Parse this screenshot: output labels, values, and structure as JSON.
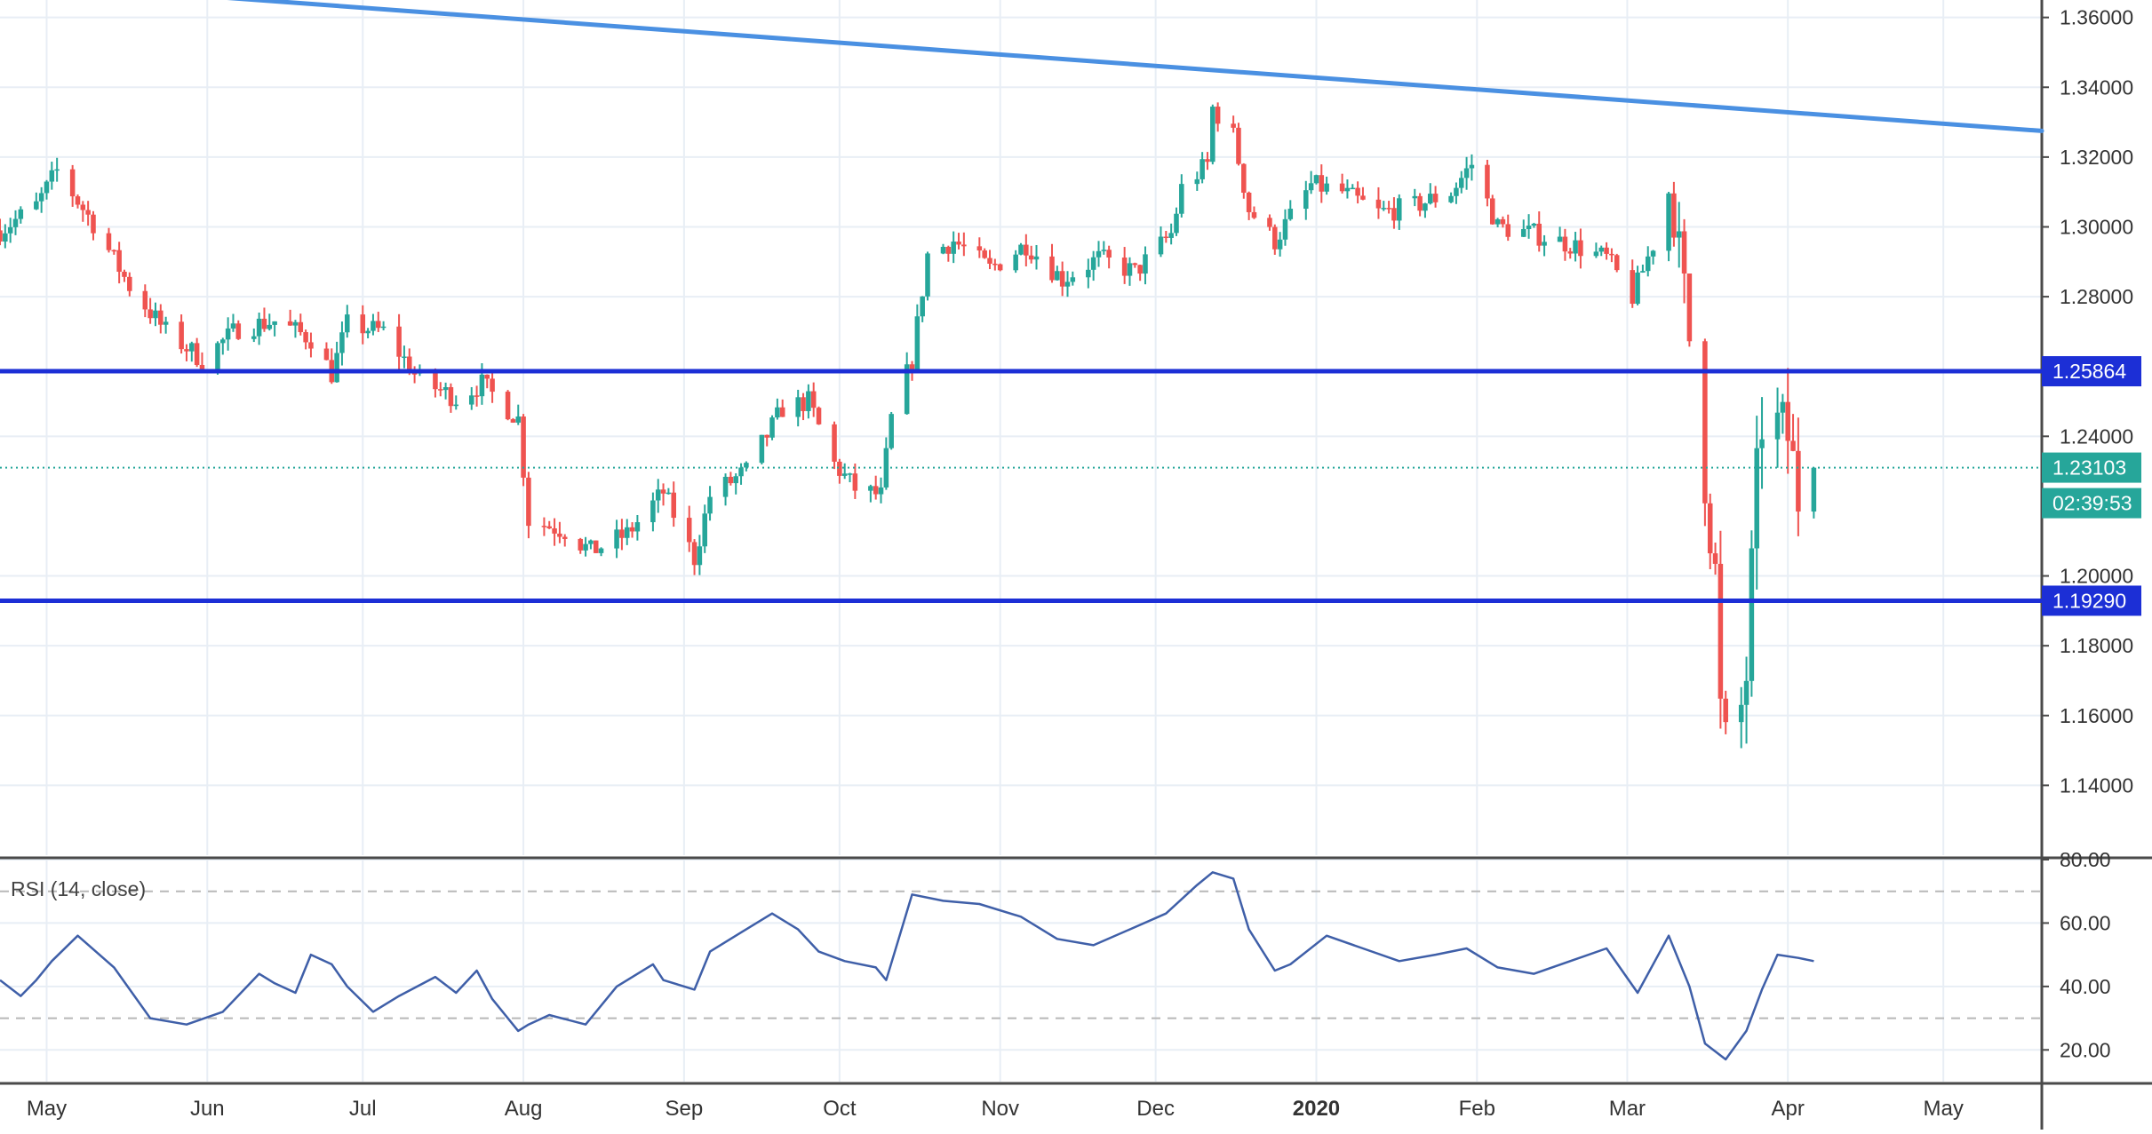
{
  "rsi_label": "RSI (14, close)",
  "colors": {
    "up": "#26a69a",
    "down": "#ef5350",
    "trendline": "#4a90e2",
    "level_line": "#1c2fd6",
    "rsi_line": "#3f5fa8",
    "grid": "#e8eef5",
    "price_label_bg": "#26a69a",
    "level_label_bg": "#1c2fd6"
  },
  "chart_data": [
    {
      "type": "candlestick",
      "x_axis_months": [
        "May",
        "Jun",
        "Jul",
        "Aug",
        "Sep",
        "Oct",
        "Nov",
        "Dec",
        "2020",
        "Feb",
        "Mar",
        "Apr",
        "May"
      ],
      "date_range": [
        "2019-04-22",
        "2020-05-20"
      ],
      "ylim": [
        1.12,
        1.365
      ],
      "y_ticks": [
        "1.36000",
        "1.34000",
        "1.32000",
        "1.30000",
        "1.28000",
        "1.24000",
        "1.20000",
        "1.18000",
        "1.16000",
        "1.14000"
      ],
      "grid": true,
      "current_price": "1.23103",
      "countdown": "02:39:53",
      "horizontal_levels": [
        {
          "value": 1.25864,
          "label": "1.25864"
        },
        {
          "value": 1.1929,
          "label": "1.19290"
        }
      ],
      "trendline": {
        "from": [
          "2019-03-20",
          1.374
        ],
        "to": [
          "2020-05-20",
          1.3275
        ]
      },
      "keypoints": [
        [
          "2019-04-22",
          1.299
        ],
        [
          "2019-04-29",
          1.306
        ],
        [
          "2019-05-03",
          1.316
        ],
        [
          "2019-05-10",
          1.301
        ],
        [
          "2019-05-17",
          1.283
        ],
        [
          "2019-05-24",
          1.27
        ],
        [
          "2019-05-31",
          1.262
        ],
        [
          "2019-06-07",
          1.271
        ],
        [
          "2019-06-14",
          1.273
        ],
        [
          "2019-06-21",
          1.268
        ],
        [
          "2019-06-25",
          1.258
        ],
        [
          "2019-06-28",
          1.272
        ],
        [
          "2019-07-05",
          1.27
        ],
        [
          "2019-07-12",
          1.256
        ],
        [
          "2019-07-19",
          1.251
        ],
        [
          "2019-07-24",
          1.255
        ],
        [
          "2019-07-31",
          1.245
        ],
        [
          "2019-08-02",
          1.216
        ],
        [
          "2019-08-09",
          1.213
        ],
        [
          "2019-08-14",
          1.207
        ],
        [
          "2019-08-21",
          1.212
        ],
        [
          "2019-08-28",
          1.224
        ],
        [
          "2019-09-03",
          1.205
        ],
        [
          "2019-09-06",
          1.223
        ],
        [
          "2019-09-13",
          1.23
        ],
        [
          "2019-09-20",
          1.248
        ],
        [
          "2019-09-25",
          1.25
        ],
        [
          "2019-09-30",
          1.232
        ],
        [
          "2019-10-04",
          1.225
        ],
        [
          "2019-10-09",
          1.223
        ],
        [
          "2019-10-11",
          1.245
        ],
        [
          "2019-10-15",
          1.262
        ],
        [
          "2019-10-18",
          1.292
        ],
        [
          "2019-10-23",
          1.296
        ],
        [
          "2019-10-30",
          1.288
        ],
        [
          "2019-11-06",
          1.295
        ],
        [
          "2019-11-13",
          1.285
        ],
        [
          "2019-11-20",
          1.291
        ],
        [
          "2019-11-27",
          1.287
        ],
        [
          "2019-12-04",
          1.298
        ],
        [
          "2019-12-06",
          1.311
        ],
        [
          "2019-12-11",
          1.318
        ],
        [
          "2019-12-12",
          1.334
        ],
        [
          "2019-12-16",
          1.326
        ],
        [
          "2019-12-19",
          1.305
        ],
        [
          "2019-12-24",
          1.296
        ],
        [
          "2019-12-31",
          1.312
        ],
        [
          "2020-01-06",
          1.31
        ],
        [
          "2020-01-13",
          1.304
        ],
        [
          "2020-01-20",
          1.306
        ],
        [
          "2020-01-27",
          1.31
        ],
        [
          "2020-01-31",
          1.318
        ],
        [
          "2020-02-05",
          1.3
        ],
        [
          "2020-02-12",
          1.298
        ],
        [
          "2020-02-19",
          1.295
        ],
        [
          "2020-02-26",
          1.291
        ],
        [
          "2020-03-02",
          1.28
        ],
        [
          "2020-03-06",
          1.295
        ],
        [
          "2020-03-09",
          1.31
        ],
        [
          "2020-03-11",
          1.29
        ],
        [
          "2020-03-13",
          1.268
        ],
        [
          "2020-03-16",
          1.23
        ],
        [
          "2020-03-18",
          1.2
        ],
        [
          "2020-03-19",
          1.16
        ],
        [
          "2020-03-20",
          1.15
        ],
        [
          "2020-03-23",
          1.162
        ],
        [
          "2020-03-24",
          1.172
        ],
        [
          "2020-03-25",
          1.2
        ],
        [
          "2020-03-26",
          1.226
        ],
        [
          "2020-03-27",
          1.245
        ],
        [
          "2020-03-30",
          1.242
        ],
        [
          "2020-04-01",
          1.24
        ],
        [
          "2020-04-03",
          1.223
        ],
        [
          "2020-04-06",
          1.231
        ]
      ]
    },
    {
      "type": "line",
      "title": "RSI (14, close)",
      "ylim": [
        10,
        80
      ],
      "y_ticks": [
        "80.00",
        "60.00",
        "40.00",
        "20.00"
      ],
      "reference_levels": [
        70,
        30
      ],
      "x": [
        "2019-04-22",
        "2019-04-26",
        "2019-04-29",
        "2019-05-02",
        "2019-05-07",
        "2019-05-14",
        "2019-05-21",
        "2019-05-28",
        "2019-06-04",
        "2019-06-11",
        "2019-06-14",
        "2019-06-18",
        "2019-06-21",
        "2019-06-25",
        "2019-06-28",
        "2019-07-03",
        "2019-07-08",
        "2019-07-15",
        "2019-07-19",
        "2019-07-23",
        "2019-07-26",
        "2019-07-31",
        "2019-08-02",
        "2019-08-06",
        "2019-08-13",
        "2019-08-19",
        "2019-08-26",
        "2019-08-28",
        "2019-09-03",
        "2019-09-06",
        "2019-09-12",
        "2019-09-18",
        "2019-09-23",
        "2019-09-27",
        "2019-10-02",
        "2019-10-08",
        "2019-10-10",
        "2019-10-15",
        "2019-10-21",
        "2019-10-28",
        "2019-11-05",
        "2019-11-12",
        "2019-11-19",
        "2019-11-26",
        "2019-12-03",
        "2019-12-09",
        "2019-12-12",
        "2019-12-16",
        "2019-12-19",
        "2019-12-24",
        "2019-12-27",
        "2020-01-03",
        "2020-01-10",
        "2020-01-17",
        "2020-01-24",
        "2020-01-30",
        "2020-02-05",
        "2020-02-12",
        "2020-02-19",
        "2020-02-26",
        "2020-03-03",
        "2020-03-09",
        "2020-03-13",
        "2020-03-16",
        "2020-03-20",
        "2020-03-24",
        "2020-03-27",
        "2020-03-30",
        "2020-04-03",
        "2020-04-06"
      ],
      "values": [
        42,
        37,
        42,
        48,
        56,
        46,
        30,
        28,
        32,
        44,
        41,
        38,
        50,
        47,
        40,
        32,
        37,
        43,
        38,
        45,
        36,
        26,
        28,
        31,
        28,
        40,
        47,
        42,
        39,
        51,
        57,
        63,
        58,
        51,
        48,
        46,
        42,
        69,
        67,
        66,
        62,
        55,
        53,
        58,
        63,
        72,
        76,
        74,
        58,
        45,
        47,
        56,
        52,
        48,
        50,
        52,
        46,
        44,
        48,
        52,
        38,
        56,
        40,
        22,
        17,
        26,
        39,
        50,
        49,
        48
      ]
    }
  ]
}
